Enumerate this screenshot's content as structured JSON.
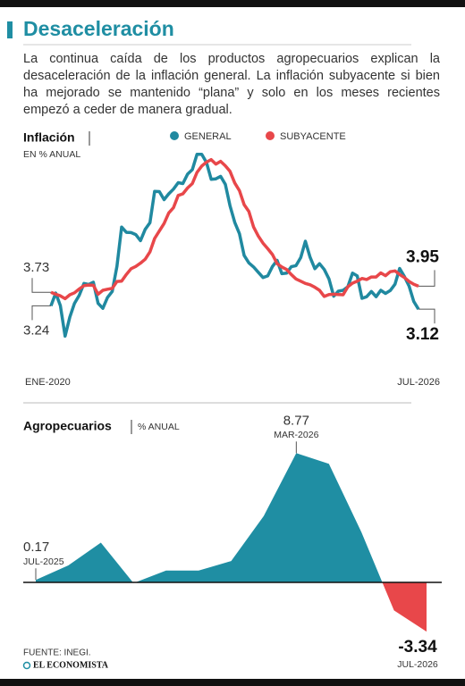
{
  "title": "Desaceleración",
  "description": "La continua caída de los productos agropecuarios explican la desaceleración de la inflación general. La inflación subyacente si bien ha mejorado se mantenido “plana”  y solo en los meses recientes empezó a ceder de manera gradual.",
  "source": "FUENTE:  INEGI.",
  "brand": "EL ECONOMISTA",
  "chart_data": [
    {
      "type": "line",
      "title": "Inflación",
      "subtitle": "EN % ANUAL",
      "categories": [
        "ENE-2020",
        null,
        null,
        null,
        null,
        null,
        null,
        null,
        null,
        null,
        null,
        null,
        null,
        null,
        null,
        null,
        null,
        null,
        null,
        null,
        null,
        null,
        null,
        null,
        null,
        null,
        null,
        null,
        null,
        null,
        null,
        null,
        null,
        null,
        null,
        null,
        null,
        null,
        null,
        null,
        null,
        null,
        null,
        null,
        null,
        null,
        null,
        null,
        null,
        null,
        null,
        null,
        null,
        null,
        null,
        null,
        null,
        null,
        null,
        null,
        null,
        null,
        null,
        null,
        null,
        null,
        null,
        null,
        null,
        null,
        null,
        null,
        null,
        null,
        null,
        null,
        null,
        null,
        "JUL-2026"
      ],
      "series": [
        {
          "name": "GENERAL",
          "color": "#2089a0",
          "values": [
            3.24,
            3.7,
            3.25,
            2.15,
            2.84,
            3.33,
            3.62,
            4.05,
            4.01,
            4.09,
            3.33,
            3.15,
            3.54,
            3.76,
            4.67,
            6.08,
            5.89,
            5.88,
            5.81,
            5.59,
            6.0,
            6.24,
            7.37,
            7.36,
            7.07,
            7.28,
            7.45,
            7.68,
            7.65,
            7.99,
            8.15,
            8.7,
            8.7,
            8.41,
            7.8,
            7.82,
            7.91,
            7.62,
            6.85,
            6.25,
            5.84,
            5.06,
            4.79,
            4.64,
            4.45,
            4.26,
            4.32,
            4.66,
            4.88,
            4.4,
            4.42,
            4.65,
            4.69,
            4.98,
            5.57,
            4.99,
            4.58,
            4.76,
            4.55,
            4.21,
            3.59,
            3.77,
            3.8,
            3.93,
            4.42,
            4.32,
            3.51,
            3.57,
            3.76,
            3.57,
            3.8,
            3.69,
            3.79,
            4.02,
            4.59,
            4.3,
            3.95,
            3.4,
            3.12
          ]
        },
        {
          "name": "SUBYACENTE",
          "color": "#e8474a",
          "values": [
            3.73,
            3.66,
            3.6,
            3.5,
            3.64,
            3.71,
            3.85,
            3.97,
            3.99,
            3.98,
            3.66,
            3.8,
            3.84,
            3.87,
            4.12,
            4.13,
            4.37,
            4.58,
            4.66,
            4.78,
            4.92,
            5.19,
            5.67,
            5.94,
            6.21,
            6.59,
            6.78,
            7.22,
            7.28,
            7.49,
            7.65,
            8.05,
            8.28,
            8.42,
            8.51,
            8.35,
            8.45,
            8.29,
            8.09,
            7.67,
            7.39,
            6.89,
            6.64,
            6.08,
            5.76,
            5.5,
            5.3,
            5.09,
            4.76,
            4.64,
            4.55,
            4.37,
            4.21,
            4.13,
            4.05,
            4.0,
            3.91,
            3.8,
            3.58,
            3.65,
            3.66,
            3.65,
            3.64,
            3.93,
            4.06,
            4.13,
            4.23,
            4.19,
            4.28,
            4.28,
            4.43,
            4.33,
            4.47,
            4.5,
            4.37,
            4.26,
            4.12,
            4.02,
            3.95
          ]
        }
      ],
      "ylim": [
        1,
        9.5
      ]
    },
    {
      "type": "area",
      "title": "Agropecuarios",
      "subtitle": "% ANUAL",
      "categories": [
        "JUL-2025",
        null,
        null,
        null,
        null,
        null,
        null,
        null,
        "MAR-2026",
        null,
        null,
        null,
        "JUL-2026"
      ],
      "values": [
        0.17,
        1.15,
        2.7,
        -0.05,
        0.8,
        0.8,
        1.45,
        4.5,
        8.77,
        8.05,
        3.4,
        -1.9,
        -3.34
      ],
      "color": "#1f8ea3",
      "negative_color": "#e8474a",
      "ylim": [
        -4,
        10
      ]
    }
  ]
}
